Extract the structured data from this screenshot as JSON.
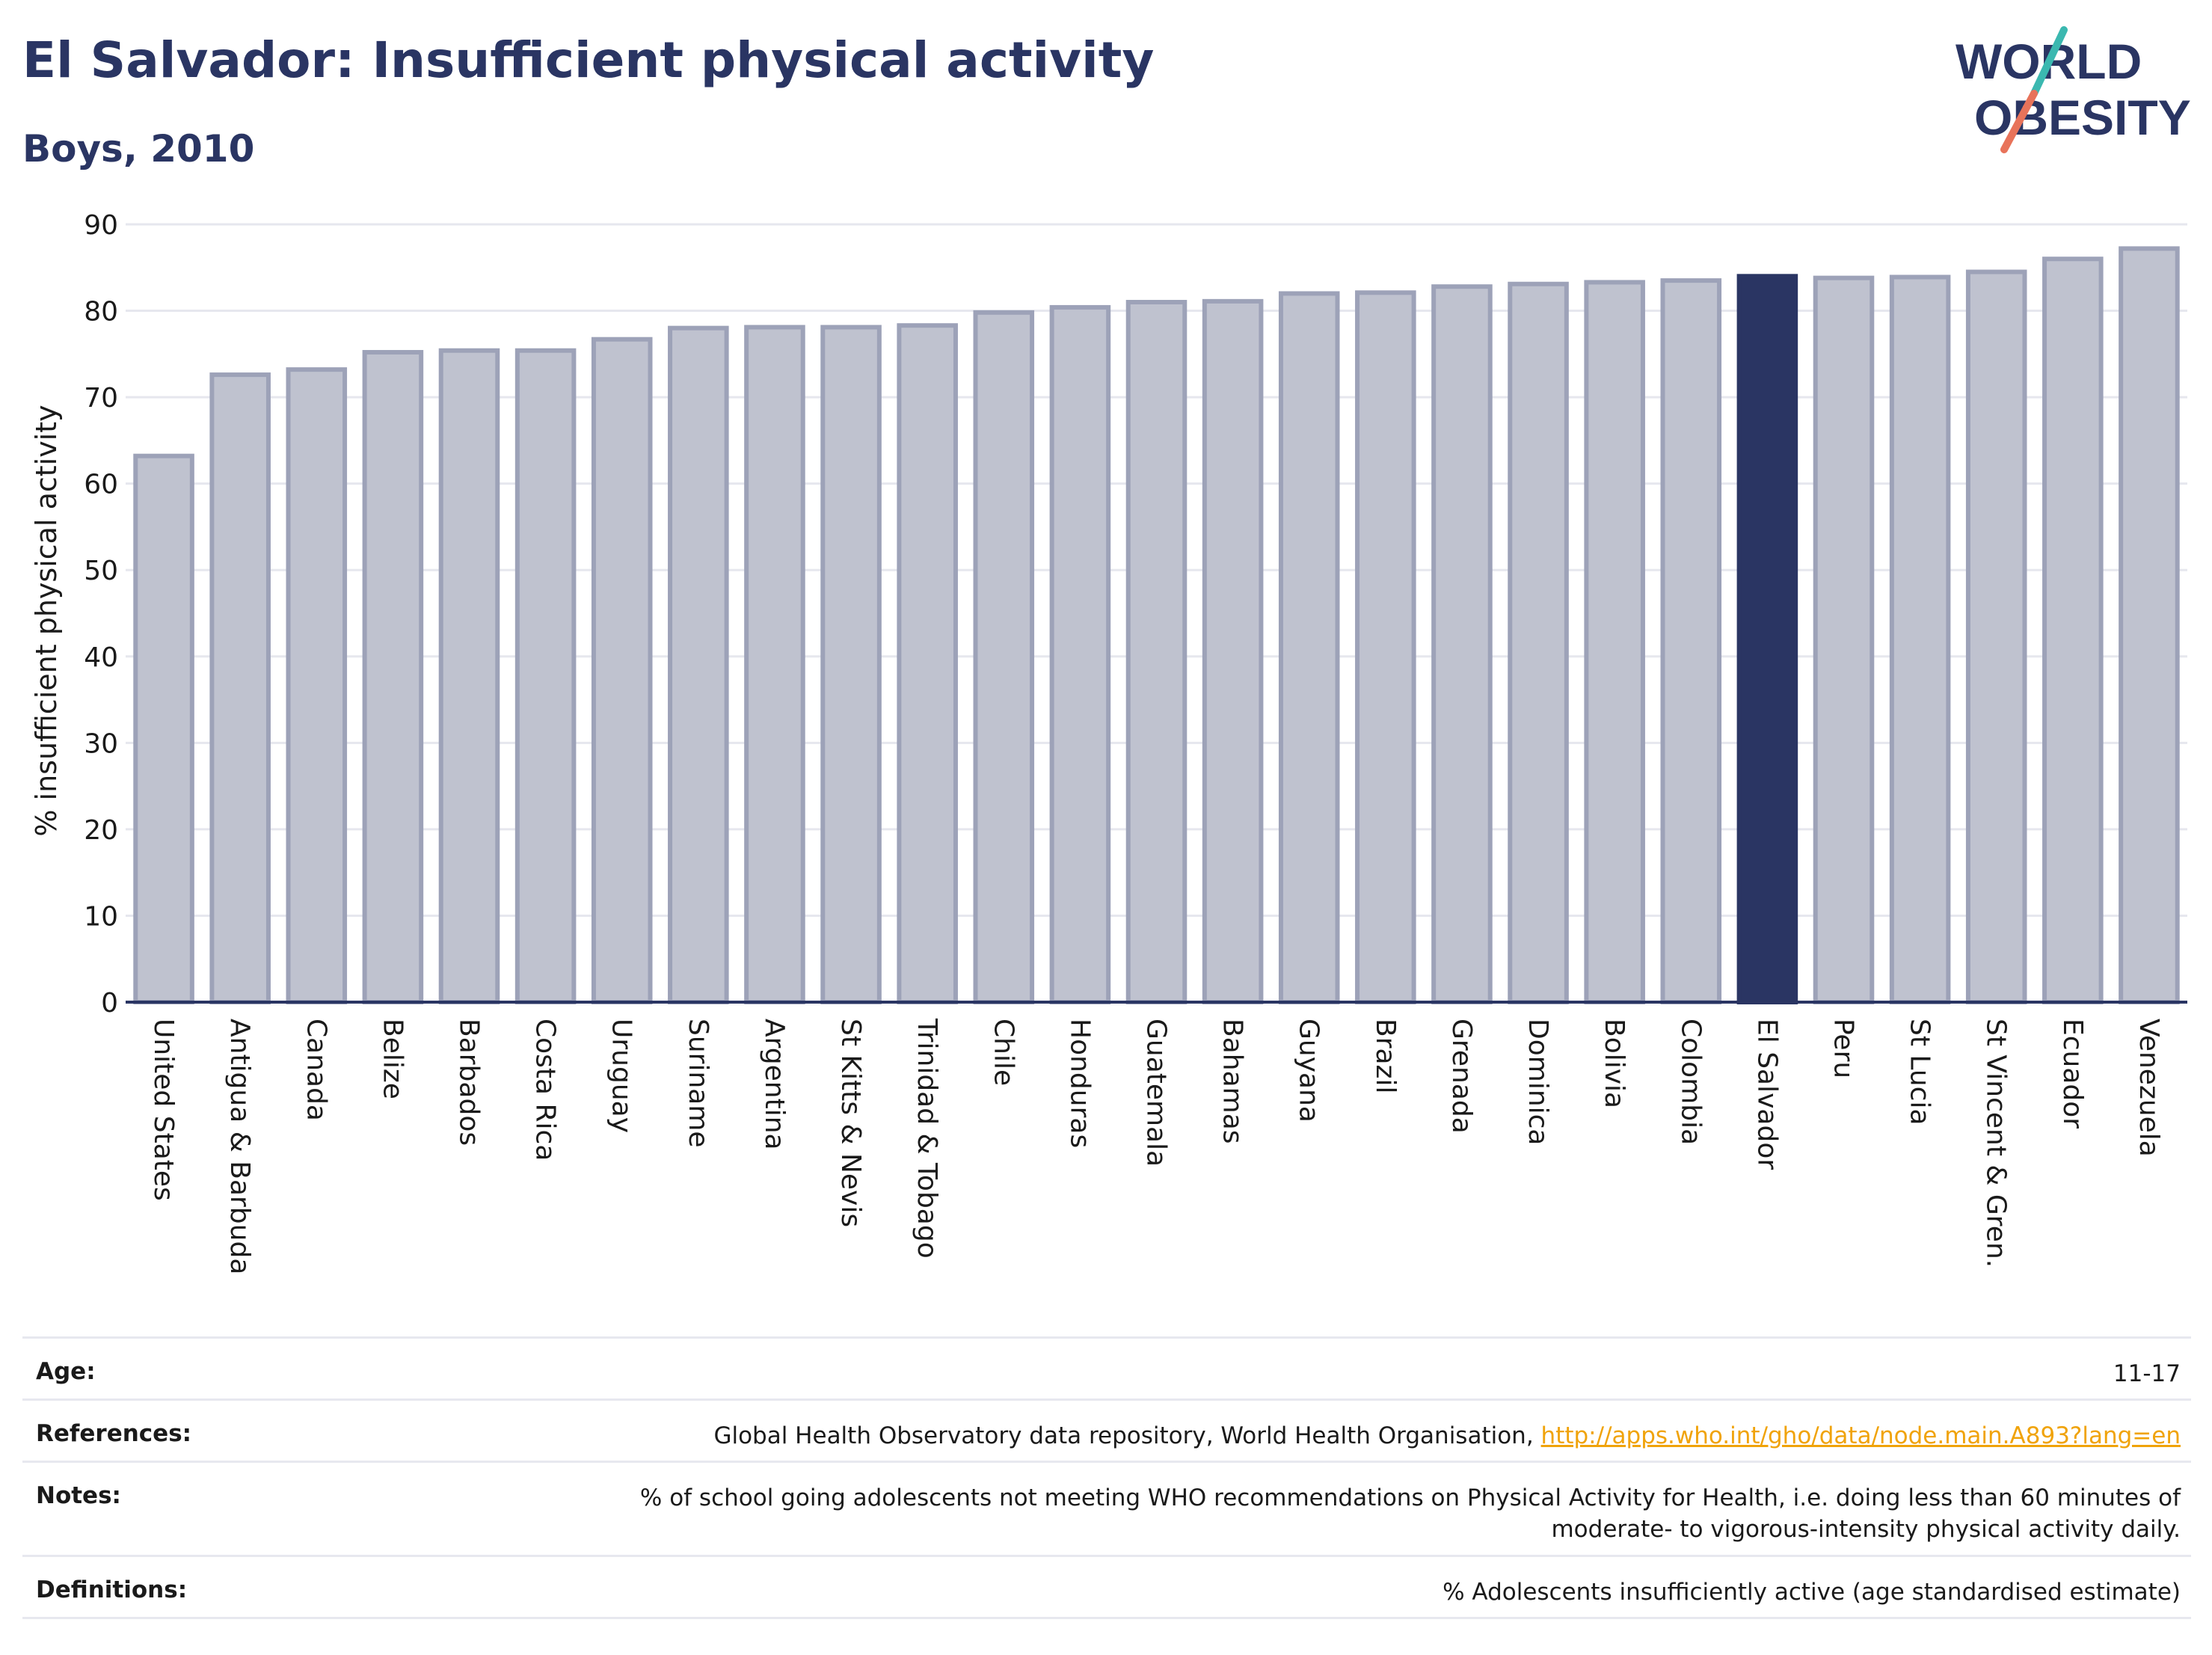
{
  "header": {
    "title": "El Salvador: Insufficient physical activity",
    "subtitle": "Boys, 2010"
  },
  "logo": {
    "line1": "WORLD",
    "line2": "OBESITY",
    "colors": {
      "text": "#2a3563",
      "slash_top": "#3bb8b0",
      "slash_bottom": "#e8735a"
    }
  },
  "chart_data": {
    "type": "bar",
    "title": "El Salvador: Insufficient physical activity",
    "subtitle": "Boys, 2010",
    "xlabel": "",
    "ylabel": "% insufficient physical activity",
    "ylim": [
      0,
      90
    ],
    "yticks": [
      0,
      10,
      20,
      30,
      40,
      50,
      60,
      70,
      80,
      90
    ],
    "grid": true,
    "highlight": "El Salvador",
    "categories": [
      "United States",
      "Antigua & Barbuda",
      "Canada",
      "Belize",
      "Barbados",
      "Costa Rica",
      "Uruguay",
      "Suriname",
      "Argentina",
      "St Kitts & Nevis",
      "Trinidad & Tobago",
      "Chile",
      "Honduras",
      "Guatemala",
      "Bahamas",
      "Guyana",
      "Brazil",
      "Grenada",
      "Dominica",
      "Bolivia",
      "Colombia",
      "El Salvador",
      "Peru",
      "St Lucia",
      "St Vincent & Gren.",
      "Ecuador",
      "Venezuela"
    ],
    "values": [
      63.2,
      72.6,
      73.2,
      75.2,
      75.4,
      75.4,
      76.7,
      78.0,
      78.1,
      78.1,
      78.3,
      79.8,
      80.4,
      81.0,
      81.1,
      82.0,
      82.1,
      82.8,
      83.1,
      83.3,
      83.5,
      84.0,
      83.8,
      83.9,
      84.5,
      86.0,
      87.2
    ],
    "colors": {
      "bar_fill": "#bfc2cf",
      "bar_stroke": "#9da2b8",
      "highlight": "#2a3563",
      "axis": "#2a3563",
      "grid": "#e6e7ee",
      "tick_text": "#1a1a1a"
    }
  },
  "meta": {
    "age": {
      "label": "Age:",
      "value": "11-17"
    },
    "references": {
      "label": "References:",
      "text": "Global Health Observatory data repository, World Health Organisation,",
      "link": "http://apps.who.int/gho/data/node.main.A893?lang=en"
    },
    "notes": {
      "label": "Notes:",
      "value": "% of school going adolescents not meeting WHO recommendations on Physical Activity for Health, i.e. doing less than 60 minutes of moderate- to vigorous-intensity physical activity daily."
    },
    "definitions": {
      "label": "Definitions:",
      "value": "% Adolescents insufficiently active (age standardised estimate)"
    }
  }
}
